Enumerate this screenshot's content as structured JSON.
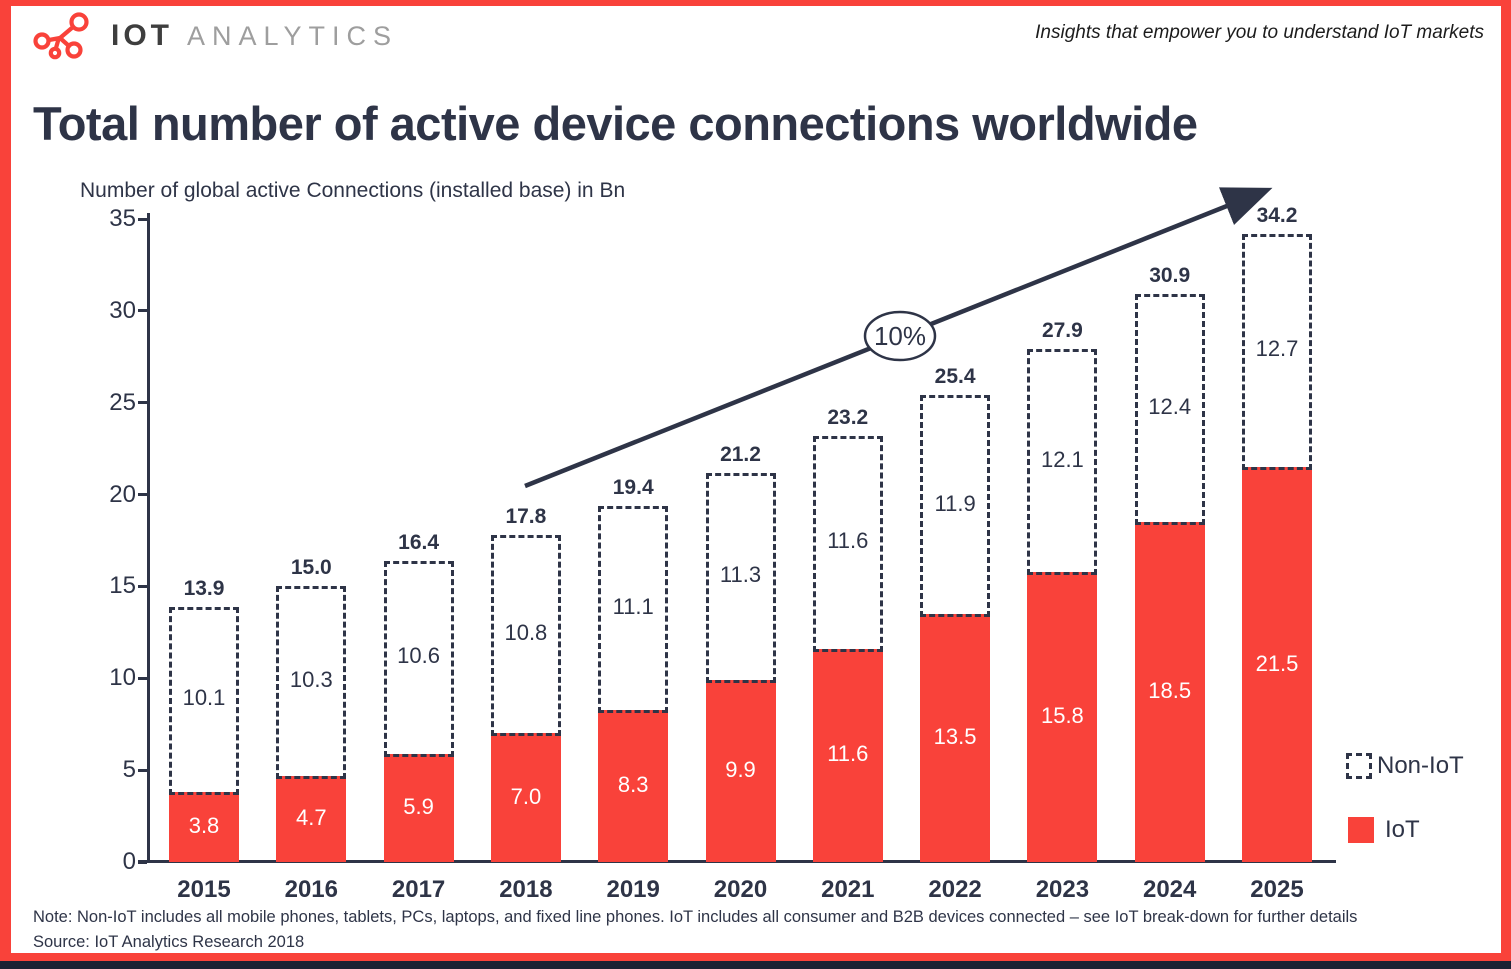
{
  "page": {
    "header": {
      "logo_iot": "IOT",
      "logo_analytics": "ANALYTICS",
      "tagline": "Insights that empower you to understand IoT markets"
    },
    "title": "Total number of active device connections worldwide",
    "subtitle": "Number of global active Connections (installed base) in Bn",
    "legend": [
      {
        "label": "Non-IoT",
        "swatch": "dashed-outline"
      },
      {
        "label": "IoT",
        "swatch": "solid",
        "color": "#F9423A"
      }
    ],
    "footer": {
      "note": "Note: Non-IoT includes all mobile phones, tablets, PCs, laptops, and fixed line phones. IoT includes all consumer and B2B devices connected – see IoT break-down for further details",
      "source": "Source: IoT Analytics Research 2018"
    }
  },
  "chart_data": {
    "type": "bar",
    "stacked": true,
    "title": "Total number of active device connections worldwide",
    "ylabel": "Number of global active Connections (installed base) in Bn",
    "categories": [
      "2015",
      "2016",
      "2017",
      "2018",
      "2019",
      "2020",
      "2021",
      "2022",
      "2023",
      "2024",
      "2025"
    ],
    "series": [
      {
        "name": "IoT",
        "style": "solid",
        "color": "#F9423A",
        "values": [
          "3.8",
          "4.7",
          "5.9",
          "7.0",
          "8.3",
          "9.9",
          "11.6",
          "13.5",
          "15.8",
          "18.5",
          "21.5"
        ]
      },
      {
        "name": "Non-IoT",
        "style": "dashed-outline",
        "color": "#2E3447",
        "values": [
          "10.1",
          "10.3",
          "10.6",
          "10.8",
          "11.1",
          "11.3",
          "11.6",
          "11.9",
          "12.1",
          "12.4",
          "12.7"
        ]
      }
    ],
    "totals": [
      "13.9",
      "15.0",
      "16.4",
      "17.8",
      "19.4",
      "21.2",
      "23.2",
      "25.4",
      "27.9",
      "30.9",
      "34.2"
    ],
    "ylim": [
      0,
      35
    ],
    "yticks": [
      "0",
      "5",
      "10",
      "15",
      "20",
      "25",
      "30",
      "35"
    ],
    "grid": false,
    "legend_position": "right",
    "growth_annotation": "10%",
    "colors": {
      "accent_red": "#F9423A",
      "navy": "#2E3447",
      "logo_gray": "#9E9E9E"
    }
  }
}
